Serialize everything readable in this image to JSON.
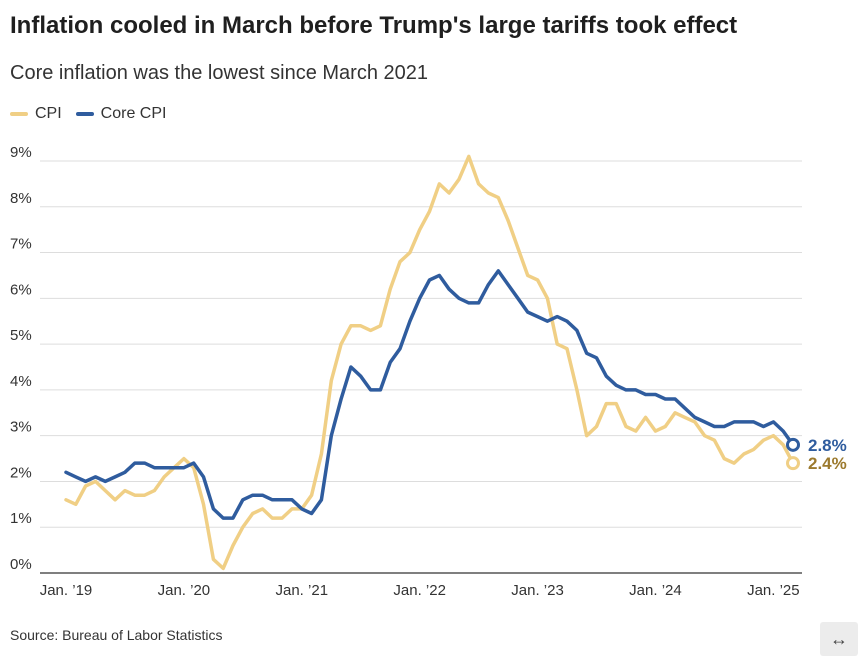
{
  "title": "Inflation cooled in March before Trump's large tariffs took effect",
  "subtitle": "Core inflation was the lowest since March 2021",
  "source": "Source: Bureau of Labor Statistics",
  "expand_icon": "↔",
  "colors": {
    "cpi": "#f0cf85",
    "core": "#2f5c9e",
    "cpi_label": "#9c7a2e",
    "grid": "#dddddd",
    "axis": "#333333"
  },
  "chart_data": {
    "type": "line",
    "title": "",
    "xlabel": "",
    "ylabel": "",
    "ylim": [
      0,
      9
    ],
    "y_ticks": [
      0,
      1,
      2,
      3,
      4,
      5,
      6,
      7,
      8,
      9
    ],
    "y_tick_labels": [
      "0%",
      "1%",
      "2%",
      "3%",
      "4%",
      "5%",
      "6%",
      "7%",
      "8%",
      "9%"
    ],
    "x_start": "2019-01",
    "x_end": "2025-03",
    "x_ticks": [
      "Jan. ’19",
      "Jan. ’20",
      "Jan. ’21",
      "Jan. ’22",
      "Jan. ’23",
      "Jan. ’24",
      "Jan. ’25"
    ],
    "grid": true,
    "legend_position": "top-left",
    "series": [
      {
        "name": "CPI",
        "end_label": "2.4%",
        "values": [
          1.6,
          1.5,
          1.9,
          2.0,
          1.8,
          1.6,
          1.8,
          1.7,
          1.7,
          1.8,
          2.1,
          2.3,
          2.5,
          2.3,
          1.5,
          0.3,
          0.1,
          0.6,
          1.0,
          1.3,
          1.4,
          1.2,
          1.2,
          1.4,
          1.4,
          1.7,
          2.6,
          4.2,
          5.0,
          5.4,
          5.4,
          5.3,
          5.4,
          6.2,
          6.8,
          7.0,
          7.5,
          7.9,
          8.5,
          8.3,
          8.6,
          9.1,
          8.5,
          8.3,
          8.2,
          7.7,
          7.1,
          6.5,
          6.4,
          6.0,
          5.0,
          4.9,
          4.0,
          3.0,
          3.2,
          3.7,
          3.7,
          3.2,
          3.1,
          3.4,
          3.1,
          3.2,
          3.5,
          3.4,
          3.3,
          3.0,
          2.9,
          2.5,
          2.4,
          2.6,
          2.7,
          2.9,
          3.0,
          2.8,
          2.4
        ]
      },
      {
        "name": "Core CPI",
        "end_label": "2.8%",
        "values": [
          2.2,
          2.1,
          2.0,
          2.1,
          2.0,
          2.1,
          2.2,
          2.4,
          2.4,
          2.3,
          2.3,
          2.3,
          2.3,
          2.4,
          2.1,
          1.4,
          1.2,
          1.2,
          1.6,
          1.7,
          1.7,
          1.6,
          1.6,
          1.6,
          1.4,
          1.3,
          1.6,
          3.0,
          3.8,
          4.5,
          4.3,
          4.0,
          4.0,
          4.6,
          4.9,
          5.5,
          6.0,
          6.4,
          6.5,
          6.2,
          6.0,
          5.9,
          5.9,
          6.3,
          6.6,
          6.3,
          6.0,
          5.7,
          5.6,
          5.5,
          5.6,
          5.5,
          5.3,
          4.8,
          4.7,
          4.3,
          4.1,
          4.0,
          4.0,
          3.9,
          3.9,
          3.8,
          3.8,
          3.6,
          3.4,
          3.3,
          3.2,
          3.2,
          3.3,
          3.3,
          3.3,
          3.2,
          3.3,
          3.1,
          2.8
        ]
      }
    ]
  }
}
